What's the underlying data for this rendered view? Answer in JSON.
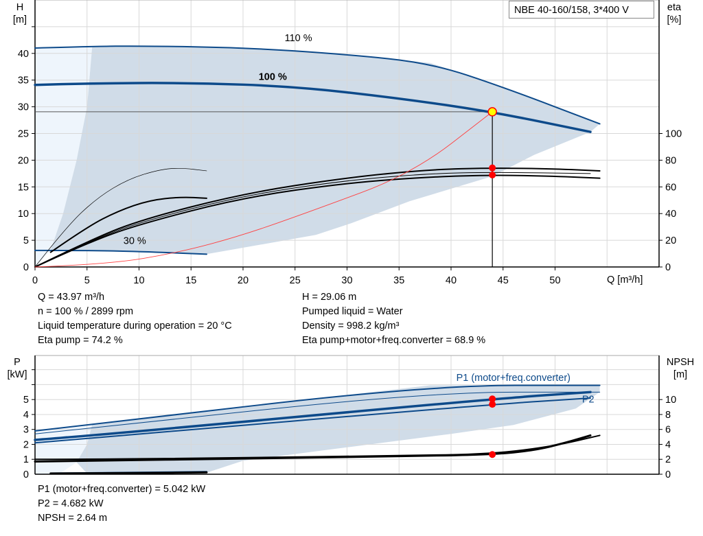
{
  "title_box": "NBE 40-160/158, 3*400 V",
  "colors": {
    "curve_blue": "#0d4a8a",
    "envelope": "#d0dce8",
    "envelope_light": "#eef5fc",
    "duty_point": "#ffff00",
    "marker": "#ff0000",
    "system_curve": "#ff4040",
    "grid": "#d8d8d8"
  },
  "chart_data": [
    {
      "type": "line",
      "name": "head-efficiency",
      "xlabel": "Q [m³/h]",
      "ylabel_left": {
        "line1": "H",
        "line2": "[m]"
      },
      "ylabel_right": {
        "line1": "eta",
        "line2": "[%]"
      },
      "xlim": [
        0,
        60
      ],
      "ylim": [
        0,
        50
      ],
      "y2lim": [
        0,
        200
      ],
      "xticks": [
        0,
        5,
        10,
        15,
        20,
        25,
        30,
        35,
        40,
        45,
        50
      ],
      "yticks": [
        0,
        5,
        10,
        15,
        20,
        25,
        30,
        35,
        40
      ],
      "y2ticks": [
        0,
        20,
        40,
        60,
        80,
        100
      ],
      "grid": true,
      "envelope_light": [
        [
          0,
          0
        ],
        [
          0,
          41
        ],
        [
          5.5,
          41.3
        ],
        [
          5,
          30
        ],
        [
          4,
          20
        ],
        [
          2.7,
          10
        ],
        [
          1.5,
          3.1
        ]
      ],
      "envelope": [
        [
          5.5,
          41.3
        ],
        [
          10,
          41.4
        ],
        [
          20,
          41.1
        ],
        [
          30,
          39.8
        ],
        [
          38,
          38.2
        ],
        [
          45,
          33.7
        ],
        [
          54.3,
          26.8
        ],
        [
          53.4,
          25.3
        ],
        [
          48,
          21
        ],
        [
          44,
          17
        ],
        [
          36,
          12.3
        ],
        [
          30.4,
          8.2
        ],
        [
          27,
          6
        ],
        [
          16.5,
          2.4
        ],
        [
          10,
          2.9
        ],
        [
          1.5,
          3.1
        ],
        [
          2.7,
          10
        ],
        [
          4,
          20
        ],
        [
          5,
          30
        ]
      ],
      "series": [
        {
          "label": "110 %",
          "axis": "H",
          "style": "blue",
          "points": [
            [
              0,
              41
            ],
            [
              5.5,
              41.3
            ],
            [
              10,
              41.4
            ],
            [
              20,
              41.1
            ],
            [
              30,
              39.8
            ],
            [
              38,
              38.2
            ],
            [
              45,
              33.7
            ],
            [
              54.3,
              26.8
            ]
          ]
        },
        {
          "label": "100 %",
          "axis": "H",
          "style": "blue-thick",
          "points": [
            [
              0,
              34.1
            ],
            [
              5,
              34.4
            ],
            [
              15,
              34.5
            ],
            [
              25,
              33.8
            ],
            [
              35,
              31.6
            ],
            [
              43.97,
              29.06
            ],
            [
              53.4,
              25.3
            ]
          ]
        },
        {
          "label": "30 %",
          "axis": "H",
          "style": "blue",
          "points": [
            [
              0,
              3.1
            ],
            [
              5,
              3.1
            ],
            [
              10,
              2.9
            ],
            [
              16.5,
              2.4
            ]
          ]
        },
        {
          "axis": "eta",
          "style": "black-thin",
          "points": [
            [
              0,
              0
            ],
            [
              3,
              30
            ],
            [
              6,
              52
            ],
            [
              9,
              66
            ],
            [
              12,
              73
            ],
            [
              14,
              74.3
            ],
            [
              16.5,
              72
            ]
          ]
        },
        {
          "axis": "eta",
          "style": "black",
          "points": [
            [
              1.5,
              11
            ],
            [
              5,
              30
            ],
            [
              8,
              42
            ],
            [
              11,
              50
            ],
            [
              14,
              52.5
            ],
            [
              16.5,
              51.5
            ]
          ]
        },
        {
          "axis": "eta",
          "style": "black",
          "points": [
            [
              0,
              0
            ],
            [
              5,
              19
            ],
            [
              10,
              35
            ],
            [
              20,
              55
            ],
            [
              30,
              67
            ],
            [
              38,
              73
            ],
            [
              43.97,
              74.2
            ],
            [
              50,
              73.5
            ],
            [
              54.3,
              72
            ]
          ]
        },
        {
          "axis": "eta",
          "style": "black",
          "points": [
            [
              0,
              0
            ],
            [
              5,
              18
            ],
            [
              10,
              32
            ],
            [
              20,
              52
            ],
            [
              30,
              63
            ],
            [
              38,
              67.5
            ],
            [
              43.97,
              68.9
            ],
            [
              50,
              68
            ],
            [
              54.3,
              66.5
            ]
          ]
        },
        {
          "axis": "eta",
          "style": "black-mid",
          "points": [
            [
              0,
              0
            ],
            [
              5,
              18.5
            ],
            [
              10,
              33.5
            ],
            [
              20,
              53.5
            ],
            [
              30,
              65
            ],
            [
              38,
              70
            ],
            [
              43.97,
              71
            ],
            [
              53.4,
              70
            ]
          ]
        },
        {
          "axis": "H",
          "style": "system",
          "points": [
            [
              0,
              0
            ],
            [
              7,
              0.5
            ],
            [
              13.8,
              2.7
            ],
            [
              19.9,
              5.9
            ],
            [
              26.5,
              10.4
            ],
            [
              36.3,
              17.5
            ],
            [
              43.97,
              29.06
            ]
          ]
        }
      ],
      "duty_point": {
        "Q": 43.97,
        "H": 29.06,
        "eta_pump": 74.2,
        "eta_total": 68.9
      },
      "labels": [
        {
          "text": "110 %",
          "Q": 24,
          "H": 42.3,
          "bold": false
        },
        {
          "text": "100 %",
          "Q": 21.5,
          "H": 35.0,
          "bold": true
        },
        {
          "text": "30 %",
          "Q": 8.5,
          "H": 4.3,
          "bold": false
        }
      ]
    },
    {
      "type": "line",
      "name": "power-npsh",
      "ylabel_left": {
        "line1": "P",
        "line2": "[kW]"
      },
      "ylabel_right": {
        "line1": "NPSH",
        "line2": "[m]"
      },
      "xlim": [
        0,
        60
      ],
      "ylim": [
        0,
        7.95
      ],
      "y2lim": [
        0,
        15.9
      ],
      "yticks": [
        0,
        1,
        2,
        3,
        4,
        5
      ],
      "y2ticks": [
        0,
        2,
        4,
        6,
        8,
        10
      ],
      "grid": true,
      "envelope_light": [
        [
          0,
          0
        ],
        [
          0,
          2.9
        ],
        [
          5.5,
          3.35
        ],
        [
          5,
          2
        ],
        [
          4,
          0.8
        ],
        [
          2.5,
          0.1
        ],
        [
          1.5,
          0
        ]
      ],
      "envelope": [
        [
          5.5,
          3.35
        ],
        [
          38,
          5.95
        ],
        [
          54.3,
          5.95
        ],
        [
          54.3,
          5.5
        ],
        [
          52,
          4.4
        ],
        [
          46,
          3.3
        ],
        [
          40,
          2.7
        ],
        [
          30,
          1.8
        ],
        [
          20,
          0.9
        ],
        [
          16.5,
          0.1
        ],
        [
          5,
          0.05
        ],
        [
          4,
          0.8
        ],
        [
          5,
          2
        ]
      ],
      "series": [
        {
          "label": "P1 (motor+freq.converter)",
          "axis": "P",
          "style": "blue",
          "points": [
            [
              0,
              2.9
            ],
            [
              5.5,
              3.35
            ],
            [
              38,
              5.95
            ],
            [
              54.3,
              5.95
            ]
          ]
        },
        {
          "axis": "P",
          "style": "blue-thin",
          "points": [
            [
              0,
              2.7
            ],
            [
              5.5,
              3.1
            ],
            [
              38,
              5.5
            ],
            [
              54.3,
              5.5
            ]
          ]
        },
        {
          "axis": "P",
          "style": "blue-thick",
          "points": [
            [
              0,
              2.3
            ],
            [
              5,
              2.55
            ],
            [
              43.97,
              5.042
            ],
            [
              53.4,
              5.5
            ]
          ]
        },
        {
          "label": "P2",
          "axis": "P",
          "style": "blue",
          "points": [
            [
              0,
              2.1
            ],
            [
              5,
              2.4
            ],
            [
              43.97,
              4.682
            ],
            [
              53.4,
              5.1
            ]
          ]
        },
        {
          "axis": "P",
          "style": "blue",
          "points": [
            [
              1.5,
              0.07
            ],
            [
              16.5,
              0.17
            ]
          ]
        },
        {
          "axis": "NPSH",
          "style": "black-thick",
          "points": [
            [
              0,
              1.7
            ],
            [
              5,
              1.8
            ],
            [
              20,
              2.1
            ],
            [
              35,
              2.4
            ],
            [
              43.97,
              2.64
            ],
            [
              48,
              3.2
            ],
            [
              51,
              4.2
            ],
            [
              53.4,
              5.2
            ]
          ]
        },
        {
          "axis": "NPSH",
          "style": "black",
          "points": [
            [
              0,
              2.0
            ],
            [
              5,
              2.0
            ],
            [
              20,
              2.2
            ],
            [
              35,
              2.5
            ],
            [
              43.97,
              2.7
            ],
            [
              50,
              3.8
            ],
            [
              54.3,
              5.2
            ]
          ]
        },
        {
          "axis": "NPSH",
          "style": "black-thick",
          "points": [
            [
              1.5,
              0.1
            ],
            [
              10,
              0.15
            ],
            [
              16.5,
              0.25
            ]
          ]
        }
      ],
      "duty_point": {
        "Q": 43.97,
        "P1": 5.042,
        "P2": 4.682,
        "NPSH": 2.64
      },
      "labels": [
        {
          "text": "P1 (motor+freq.converter)",
          "Q": 40.5,
          "P": 6.25,
          "bold": false,
          "blue": true
        },
        {
          "text": "P2",
          "Q": 52.6,
          "P": 4.8,
          "bold": false,
          "blue": true
        }
      ]
    }
  ],
  "info_top": {
    "left": [
      "Q = 43.97 m³/h",
      "n = 100 % / 2899 rpm",
      "Liquid temperature during operation = 20 °C",
      "Eta pump = 74.2 %"
    ],
    "right": [
      "H = 29.06 m",
      "Pumped liquid = Water",
      "Density = 998.2 kg/m³",
      "Eta pump+motor+freq.converter = 68.9 %"
    ]
  },
  "info_bottom": [
    "P1 (motor+freq.converter) = 5.042 kW",
    "P2 = 4.682 kW",
    "NPSH = 2.64 m"
  ]
}
